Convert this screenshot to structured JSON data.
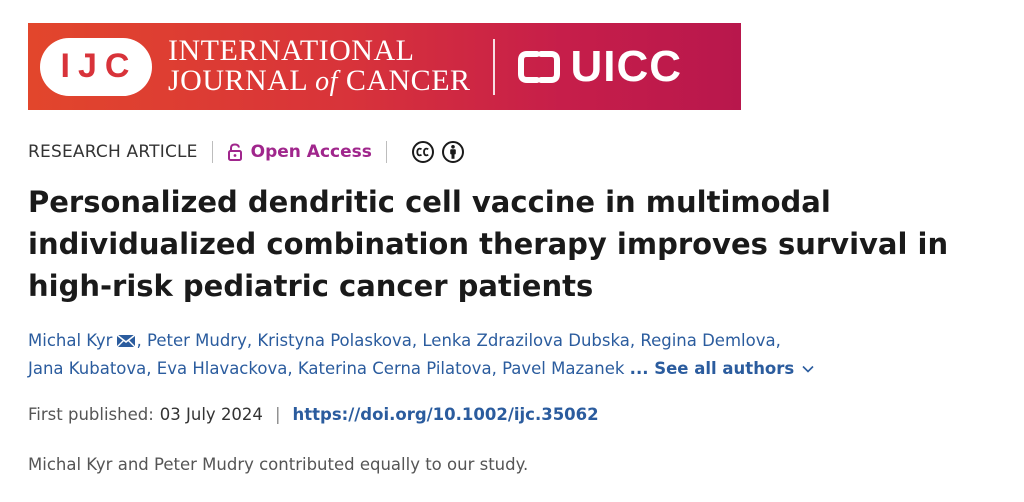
{
  "banner": {
    "ijc_abbr": "IJC",
    "journal_line1": "INTERNATIONAL",
    "journal_line2_a": "JOURNAL ",
    "journal_line2_of": "of",
    "journal_line2_b": " CANCER",
    "partner": "UICC",
    "gradient_start": "#e2462c",
    "gradient_end": "#b8174c"
  },
  "meta": {
    "article_type": "RESEARCH ARTICLE",
    "open_access": "Open Access",
    "open_access_color": "#a0268c",
    "license_icons": [
      "creative-commons-icon",
      "attribution-icon"
    ]
  },
  "title": "Personalized dendritic cell vaccine in multimodal individualized combination therapy improves survival in high-risk pediatric cancer patients",
  "authors": [
    "Michal Kyr",
    "Peter Mudry",
    "Kristyna Polaskova",
    "Lenka Zdrazilova Dubska",
    "Regina Demlova",
    "Jana Kubatova",
    "Eva Hlavackova",
    "Katerina Cerna Pilatova",
    "Pavel Mazanek"
  ],
  "see_all": "... See all authors",
  "published": {
    "label": "First published:",
    "date": "03 July 2024",
    "separator": "|",
    "doi": "https://doi.org/10.1002/ijc.35062"
  },
  "note": "Michal Kyr and Peter Mudry contributed equally to our study.",
  "link_color": "#2b5c9e"
}
